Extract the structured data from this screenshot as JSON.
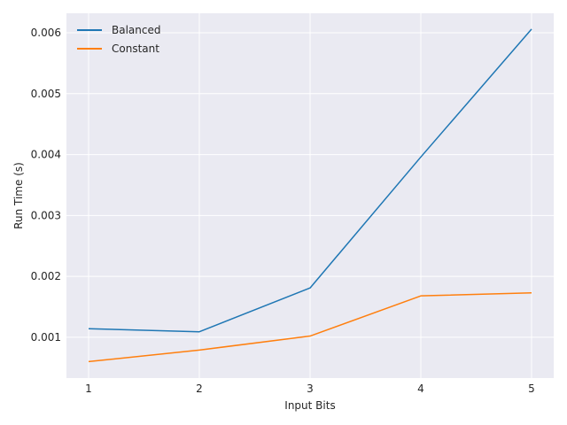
{
  "chart_data": {
    "type": "line",
    "title": "",
    "xlabel": "Input Bits",
    "ylabel": "Run Time (s)",
    "x": [
      1,
      2,
      3,
      4,
      5
    ],
    "xlim": [
      0.8,
      5.2
    ],
    "ylim": [
      0.00033,
      0.00632
    ],
    "xticks": [
      1,
      2,
      3,
      4,
      5
    ],
    "xtick_labels": [
      "1",
      "2",
      "3",
      "4",
      "5"
    ],
    "yticks": [
      0.001,
      0.002,
      0.003,
      0.004,
      0.005,
      0.006
    ],
    "ytick_labels": [
      "0.001",
      "0.002",
      "0.003",
      "0.004",
      "0.005",
      "0.006"
    ],
    "grid": true,
    "legend_position": "top-left",
    "series": [
      {
        "name": "Balanced",
        "color": "#1f77b4",
        "values": [
          0.00114,
          0.00109,
          0.00181,
          0.00396,
          0.00606
        ]
      },
      {
        "name": "Constant",
        "color": "#ff7f0e",
        "values": [
          0.0006,
          0.00079,
          0.00102,
          0.00168,
          0.00173
        ]
      }
    ],
    "background": "#eaeaf2",
    "grid_color": "#ffffff"
  }
}
